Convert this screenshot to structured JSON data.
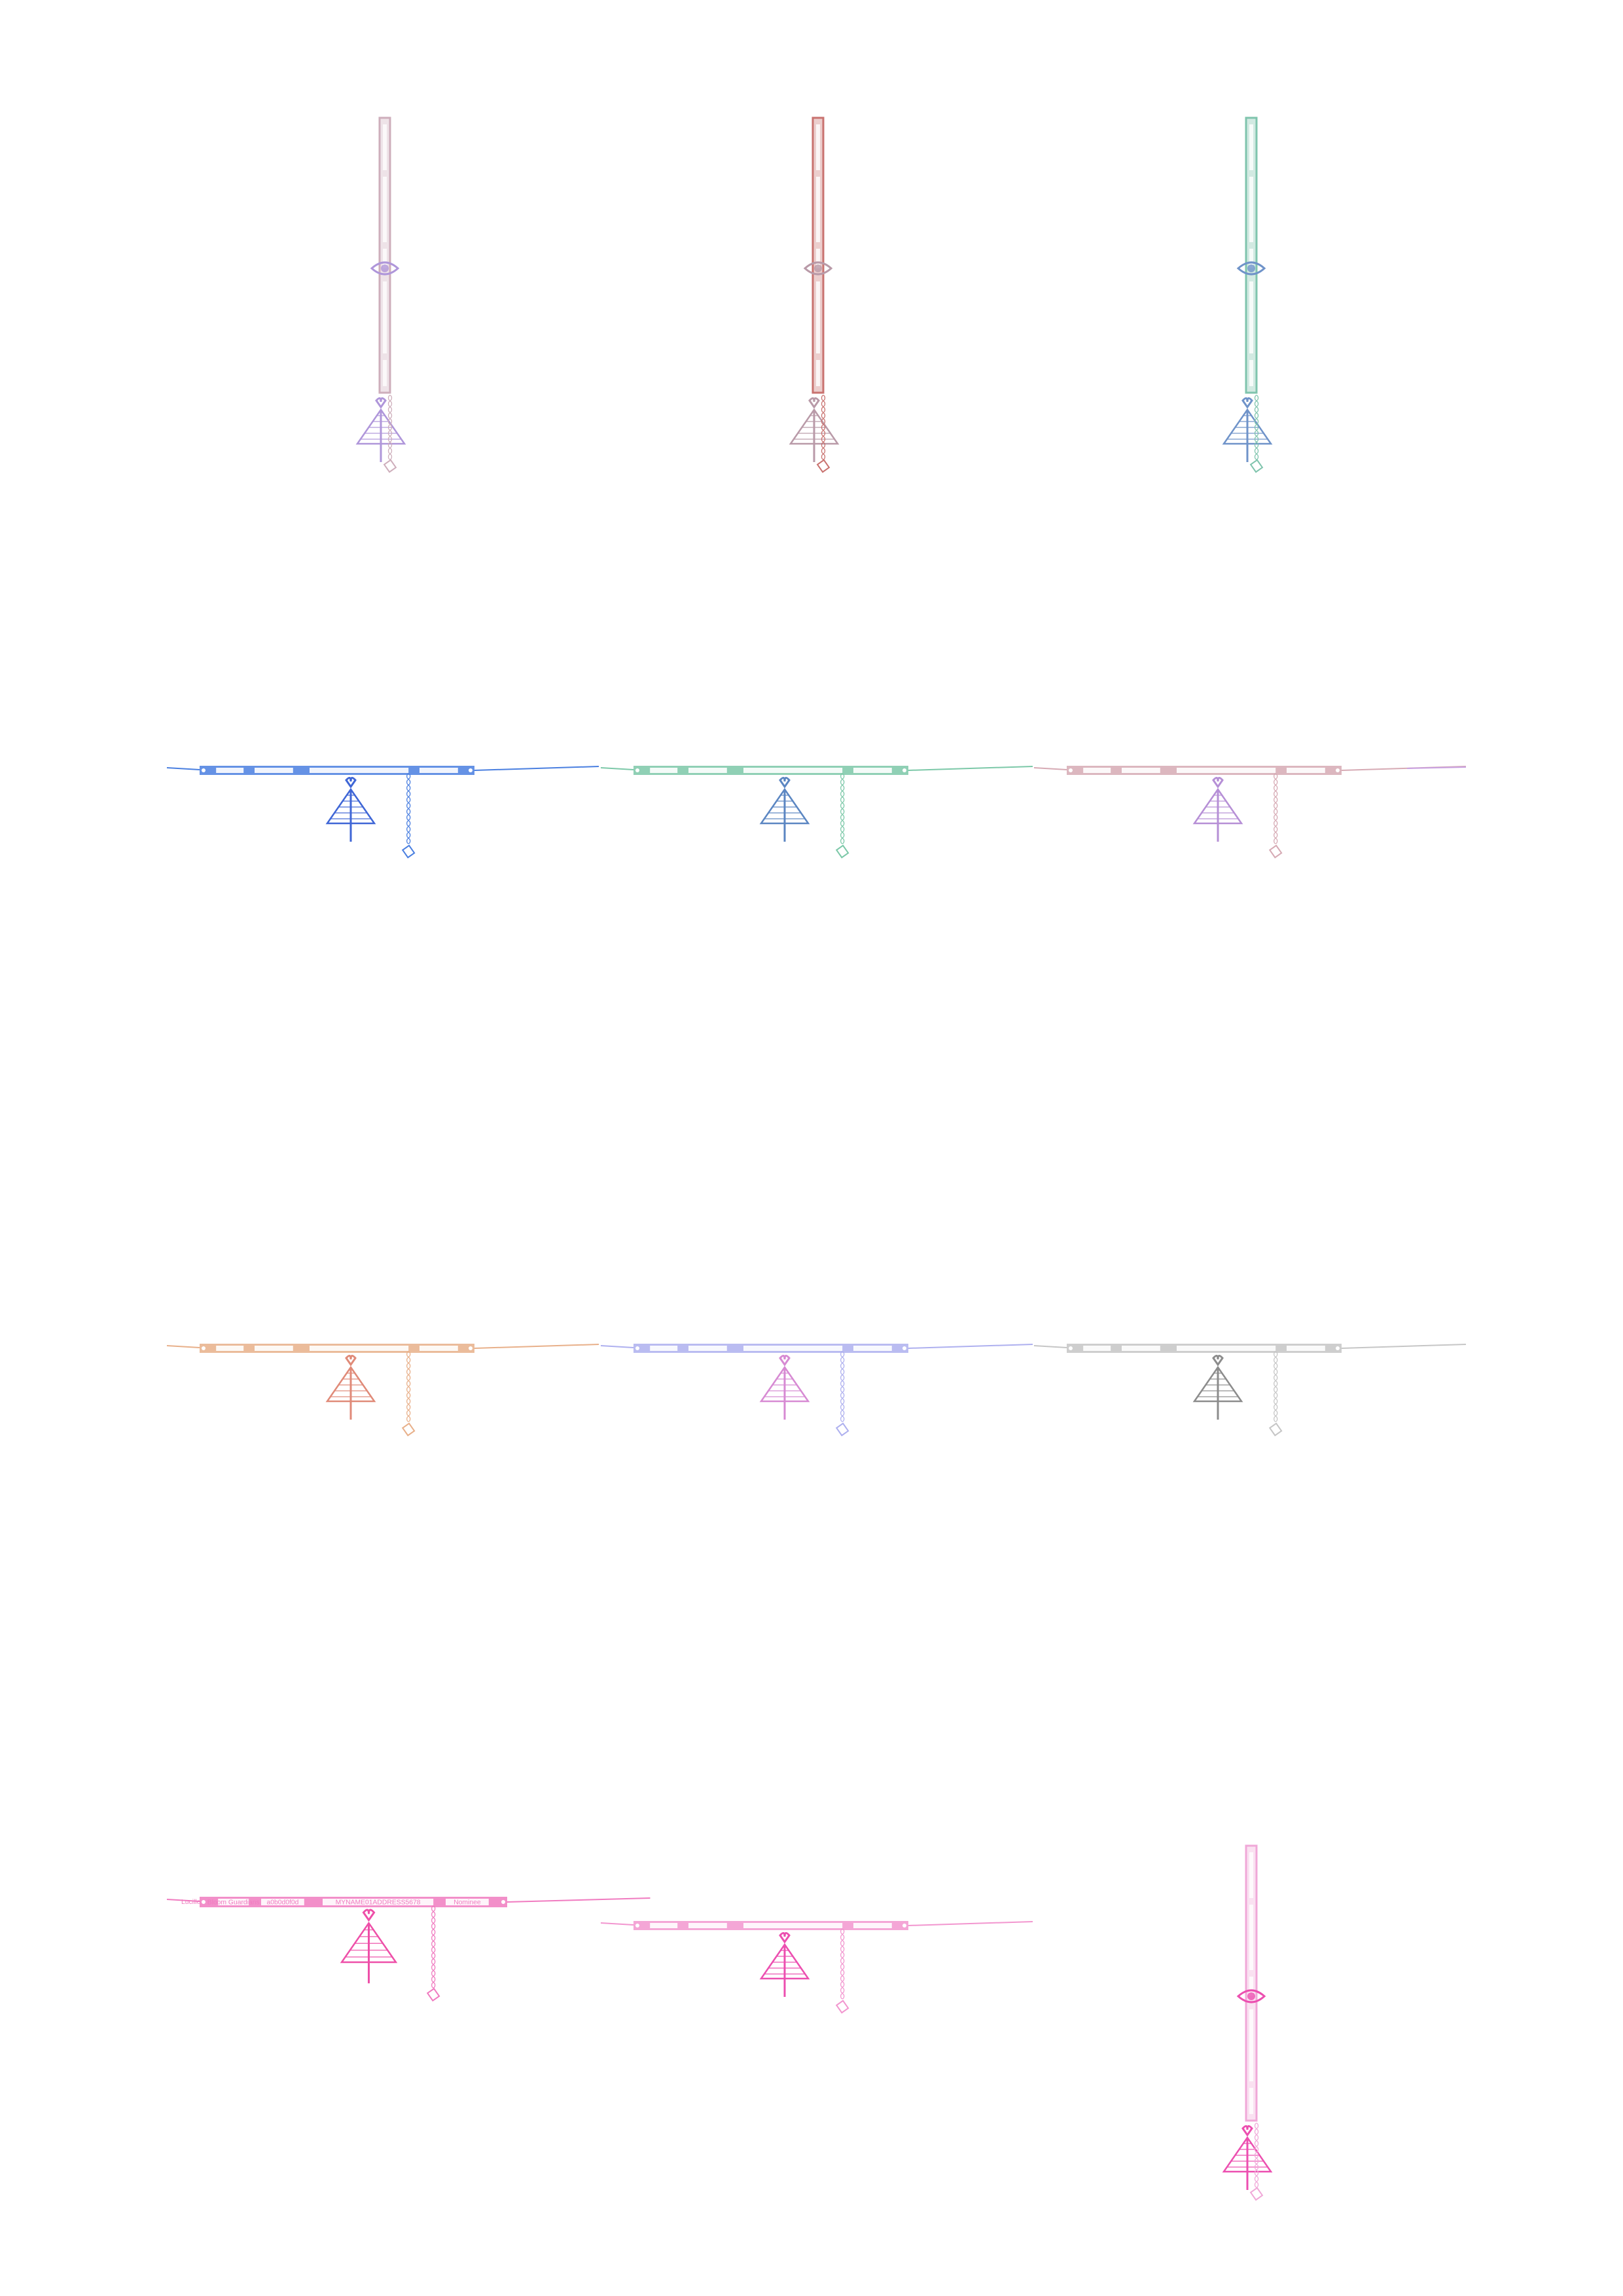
{
  "sheet": {
    "background": "#ffffff"
  },
  "items": [
    {
      "id": "lanyard-1",
      "orientation": "vertical",
      "color": "#c9a6b4",
      "charm_color": "#a78bd6",
      "opacity": 0.9
    },
    {
      "id": "lanyard-2",
      "orientation": "vertical",
      "color": "#c9726f",
      "charm_color": "#b99aa8",
      "opacity": 1
    },
    {
      "id": "lanyard-3",
      "orientation": "vertical",
      "color": "#7fc4ad",
      "charm_color": "#6f93c9",
      "opacity": 1
    },
    {
      "id": "lanyard-4",
      "orientation": "horizontal",
      "color": "#4a7fe0",
      "charm_color": "#3f66d6",
      "opacity": 1
    },
    {
      "id": "lanyard-5",
      "orientation": "horizontal",
      "color": "#7cc8a8",
      "charm_color": "#5b86c2",
      "opacity": 1
    },
    {
      "id": "lanyard-6",
      "orientation": "horizontal",
      "color": "#d6aab4",
      "charm_color": "#b68fd6",
      "opacity": 1
    },
    {
      "id": "lanyard-7",
      "orientation": "horizontal",
      "color": "#e8b08a",
      "charm_color": "#e08a78",
      "opacity": 1
    },
    {
      "id": "lanyard-8",
      "orientation": "horizontal",
      "color": "#aeb0ef",
      "charm_color": "#d78ad3",
      "opacity": 1
    },
    {
      "id": "lanyard-9",
      "orientation": "horizontal",
      "color": "#c6c6c6",
      "charm_color": "#8c8c8c",
      "opacity": 1
    },
    {
      "id": "lanyard-10",
      "orientation": "horizontal",
      "color": "#f07bc0",
      "charm_color": "#ee4fa8",
      "opacity": 1,
      "labels": [
        "Lucille",
        "Bloom Guardians",
        "a0b0d0f0d",
        "MYNAME01ADDRESS5678",
        "Nominee"
      ]
    },
    {
      "id": "lanyard-11",
      "orientation": "horizontal",
      "color": "#f296cf",
      "charm_color": "#ec4fb0",
      "opacity": 1
    },
    {
      "id": "lanyard-12",
      "orientation": "vertical",
      "color": "#f0a8d8",
      "charm_color": "#ec4fb0",
      "opacity": 1
    }
  ],
  "stray_line": {
    "color": "#c8a0e0"
  }
}
